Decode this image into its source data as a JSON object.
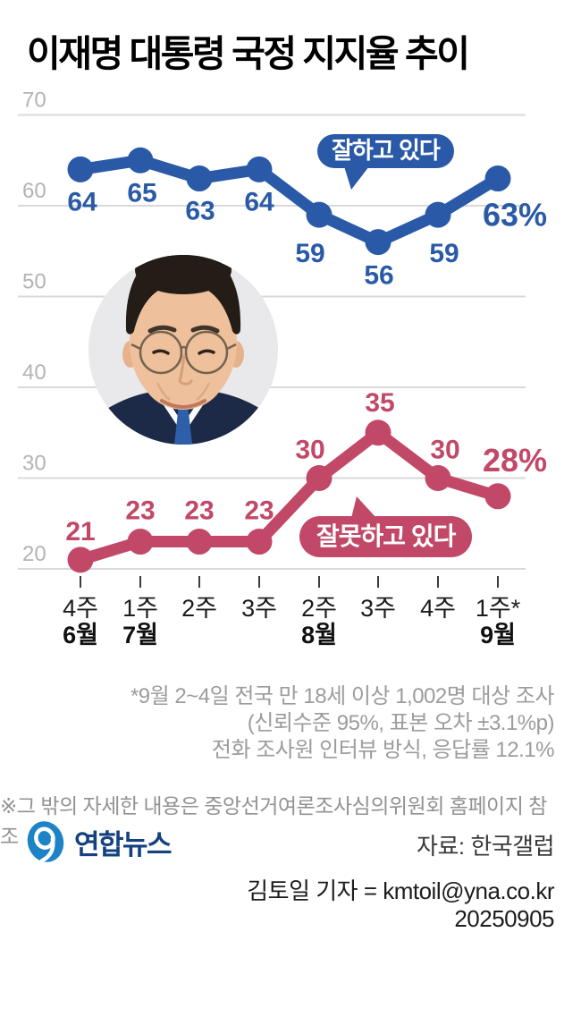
{
  "chart_data": {
    "type": "line",
    "title": "이재명 대통령 국정 지지율 추이",
    "unit": "%",
    "x_week_labels": [
      "4주",
      "1주",
      "2주",
      "3주",
      "2주",
      "3주",
      "4주",
      "1주*"
    ],
    "x_month_labels": [
      {
        "index": 0,
        "label": "6월"
      },
      {
        "index": 1,
        "label": "7월"
      },
      {
        "index": 4,
        "label": "8월"
      },
      {
        "index": 7,
        "label": "9월"
      }
    ],
    "y_ticks": [
      70,
      60,
      50,
      40,
      30,
      20
    ],
    "ylim": [
      20,
      70
    ],
    "grid": true,
    "gridline_color": "#d9d9d9",
    "axis_label_color": "#b3b3b3",
    "legend_position": "speech-bubbles-inside-plot",
    "series": [
      {
        "name": "잘하고 있다",
        "color": "#2a5aa7",
        "values": [
          64,
          65,
          63,
          64,
          59,
          56,
          59,
          63
        ],
        "last_point_label": "63%"
      },
      {
        "name": "잘못하고 있다",
        "color": "#c24868",
        "values": [
          21,
          23,
          23,
          23,
          30,
          35,
          30,
          28
        ],
        "last_point_label": "28%"
      }
    ]
  },
  "footnotes": {
    "line1": "*9월 2~4일 전국 만 18세 이상 1,002명 대상 조사",
    "line2": "(신뢰수준 95%, 표본 오차 ±3.1%p)",
    "line3": "전화 조사원 인터뷰 방식, 응답률 12.1%",
    "note": "※그 밖의 자세한 내용은 중앙선거여론조사심의위원회 홈페이지 참조"
  },
  "footer": {
    "logo_text": "연합뉴스",
    "source": "자료: 한국갤럽",
    "credit": "김토일 기자 = kmtoil@yna.co.kr",
    "date": "20250905"
  }
}
